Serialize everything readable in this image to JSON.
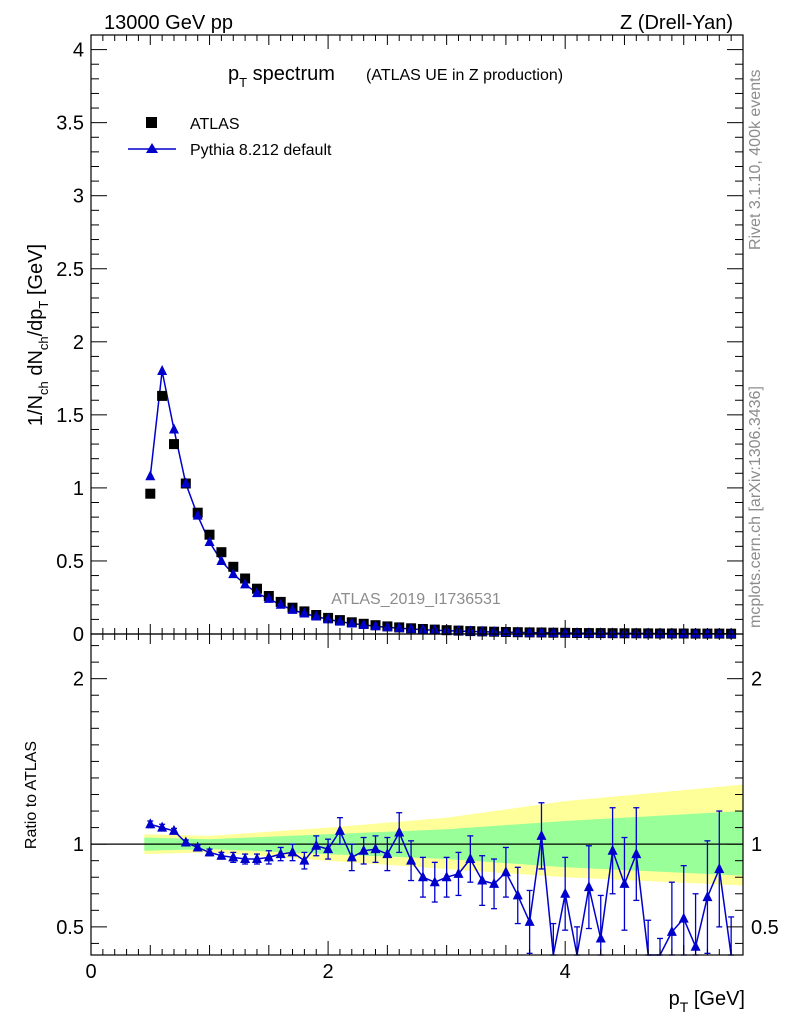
{
  "header": {
    "left": "13000 GeV pp",
    "right": "Z (Drell-Yan)"
  },
  "side_text": {
    "rivet": "Rivet 3.1.10,  400k events",
    "mcplots": "mcplots.cern.ch [arXiv:1306.3436]"
  },
  "watermark": "ATLAS_2019_I1736531",
  "colors": {
    "mc": "#0000cc",
    "data": "#000000",
    "band_inner": "#99ff99",
    "band_outer": "#ffff99"
  },
  "chart_data": [
    {
      "type": "scatter",
      "panel": "main",
      "title_main": "p",
      "title_sub": "T",
      "title_rest": " spectrum",
      "title_note": "(ATLAS UE in Z production)",
      "ylabel": "1/N_ch dN_ch/dp_T [GeV]",
      "ylabel_parts": [
        "1/N",
        "ch",
        " dN",
        "ch",
        "/dp",
        "T",
        " [GeV]"
      ],
      "xlim": [
        0,
        5.5
      ],
      "ylim": [
        0,
        4.1
      ],
      "yticks": [
        0,
        0.5,
        1,
        1.5,
        2,
        2.5,
        3,
        3.5,
        4
      ],
      "ytick_labels": [
        "0",
        "0.5",
        "1",
        "1.5",
        "2",
        "2.5",
        "3",
        "3.5",
        "4"
      ],
      "legend": {
        "position": "top-left",
        "entries": [
          "ATLAS",
          "Pythia 8.212 default"
        ]
      },
      "series": [
        {
          "name": "ATLAS",
          "marker": "square",
          "x": [
            0.5,
            0.6,
            0.7,
            0.8,
            0.9,
            1.0,
            1.1,
            1.2,
            1.3,
            1.4,
            1.5,
            1.6,
            1.7,
            1.8,
            1.9,
            2.0,
            2.1,
            2.2,
            2.3,
            2.4,
            2.5,
            2.6,
            2.7,
            2.8,
            2.9,
            3.0,
            3.1,
            3.2,
            3.3,
            3.4,
            3.5,
            3.6,
            3.7,
            3.8,
            3.9,
            4.0,
            4.1,
            4.2,
            4.3,
            4.4,
            4.5,
            4.6,
            4.7,
            4.8,
            4.9,
            5.0,
            5.1,
            5.2,
            5.3,
            5.4
          ],
          "y": [
            0.96,
            1.63,
            1.3,
            1.03,
            0.83,
            0.68,
            0.56,
            0.46,
            0.38,
            0.31,
            0.26,
            0.22,
            0.18,
            0.155,
            0.13,
            0.11,
            0.095,
            0.08,
            0.07,
            0.06,
            0.052,
            0.045,
            0.039,
            0.034,
            0.03,
            0.026,
            0.023,
            0.02,
            0.018,
            0.016,
            0.014,
            0.012,
            0.011,
            0.01,
            0.009,
            0.008,
            0.007,
            0.0065,
            0.006,
            0.0055,
            0.005,
            0.0045,
            0.004,
            0.0037,
            0.0034,
            0.0031,
            0.0028,
            0.0026,
            0.0024,
            0.0022
          ]
        },
        {
          "name": "Pythia 8.212 default",
          "marker": "triangle",
          "x": [
            0.5,
            0.6,
            0.7,
            0.8,
            0.9,
            1.0,
            1.1,
            1.2,
            1.3,
            1.4,
            1.5,
            1.6,
            1.7,
            1.8,
            1.9,
            2.0,
            2.1,
            2.2,
            2.3,
            2.4,
            2.5,
            2.6,
            2.7,
            2.8,
            2.9,
            3.0,
            3.1,
            3.2,
            3.3,
            3.4,
            3.5,
            3.6,
            3.7,
            3.8,
            3.9,
            4.0,
            4.1,
            4.2,
            4.3,
            4.4,
            4.5,
            4.6,
            4.7,
            4.8,
            4.9,
            5.0,
            5.1,
            5.2,
            5.3,
            5.4
          ],
          "y": [
            1.08,
            1.8,
            1.4,
            1.03,
            0.81,
            0.63,
            0.5,
            0.41,
            0.34,
            0.28,
            0.24,
            0.2,
            0.165,
            0.14,
            0.12,
            0.1,
            0.085,
            0.072,
            0.062,
            0.053,
            0.046,
            0.04,
            0.035,
            0.03,
            0.026,
            0.023,
            0.02,
            0.018,
            0.016,
            0.014,
            0.012,
            0.011,
            0.0095,
            0.0085,
            0.0075,
            0.0068,
            0.006,
            0.0055,
            0.005,
            0.0046,
            0.0042,
            0.0038,
            0.0034,
            0.0031,
            0.0028,
            0.0026,
            0.0024,
            0.0022,
            0.002,
            0.0018
          ]
        }
      ]
    },
    {
      "type": "line",
      "panel": "ratio",
      "ylabel": "Ratio to ATLAS",
      "xlabel_main": "p",
      "xlabel_sub": "T",
      "xlabel_rest": " [GeV]",
      "xlim": [
        0,
        5.5
      ],
      "ylim": [
        0.33,
        2.27
      ],
      "xticks": [
        0,
        2,
        4
      ],
      "xtick_labels": [
        "0",
        "2",
        "4"
      ],
      "yticks": [
        0.5,
        1,
        2
      ],
      "ytick_labels": [
        "0.5",
        "1",
        "2"
      ],
      "reference_line": 1,
      "band_x": [
        0.45,
        1.0,
        2.0,
        3.0,
        4.0,
        5.5
      ],
      "band_inner_lo": [
        0.96,
        0.97,
        0.94,
        0.91,
        0.86,
        0.81
      ],
      "band_inner_hi": [
        1.04,
        1.03,
        1.06,
        1.09,
        1.14,
        1.2
      ],
      "band_outer_lo": [
        0.94,
        0.95,
        0.9,
        0.85,
        0.8,
        0.75
      ],
      "band_outer_hi": [
        1.06,
        1.05,
        1.1,
        1.16,
        1.26,
        1.36
      ],
      "series": [
        {
          "name": "Pythia 8.212 default",
          "x": [
            0.5,
            0.6,
            0.7,
            0.8,
            0.9,
            1.0,
            1.1,
            1.2,
            1.3,
            1.4,
            1.5,
            1.6,
            1.7,
            1.8,
            1.9,
            2.0,
            2.1,
            2.2,
            2.3,
            2.4,
            2.5,
            2.6,
            2.7,
            2.8,
            2.9,
            3.0,
            3.1,
            3.2,
            3.3,
            3.4,
            3.5,
            3.6,
            3.7,
            3.8,
            3.9,
            4.0,
            4.1,
            4.2,
            4.3,
            4.4,
            4.5,
            4.6,
            4.7,
            4.8,
            4.9,
            5.0,
            5.1,
            5.2,
            5.3,
            5.4
          ],
          "y": [
            1.12,
            1.1,
            1.08,
            1.01,
            0.98,
            0.95,
            0.93,
            0.92,
            0.91,
            0.91,
            0.92,
            0.94,
            0.95,
            0.9,
            0.99,
            0.97,
            1.08,
            0.92,
            0.96,
            0.97,
            0.94,
            1.07,
            0.9,
            0.8,
            0.77,
            0.8,
            0.82,
            0.91,
            0.78,
            0.76,
            0.83,
            0.69,
            0.53,
            1.05,
            0.3,
            0.7,
            0.28,
            0.74,
            0.43,
            0.96,
            0.76,
            0.94,
            0.24,
            0.13,
            0.47,
            0.55,
            0.38,
            0.68,
            0.85,
            0.2
          ],
          "err": [
            0.02,
            0.02,
            0.015,
            0.015,
            0.015,
            0.02,
            0.02,
            0.03,
            0.03,
            0.03,
            0.04,
            0.04,
            0.05,
            0.05,
            0.06,
            0.06,
            0.08,
            0.08,
            0.08,
            0.08,
            0.1,
            0.12,
            0.12,
            0.12,
            0.12,
            0.12,
            0.13,
            0.14,
            0.15,
            0.15,
            0.15,
            0.17,
            0.19,
            0.2,
            0.22,
            0.22,
            0.22,
            0.25,
            0.26,
            0.26,
            0.28,
            0.28,
            0.3,
            0.3,
            0.3,
            0.32,
            0.32,
            0.34,
            0.35,
            0.36
          ]
        }
      ]
    }
  ]
}
